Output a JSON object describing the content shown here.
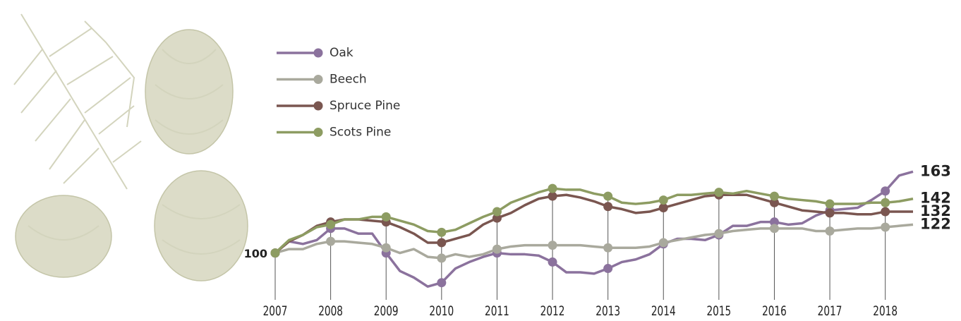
{
  "chart_data": {
    "type": "line",
    "x": [
      2007,
      2007.25,
      2007.5,
      2007.75,
      2008,
      2008.25,
      2008.5,
      2008.75,
      2009,
      2009.25,
      2009.5,
      2009.75,
      2010,
      2010.25,
      2010.5,
      2010.75,
      2011,
      2011.25,
      2011.5,
      2011.75,
      2012,
      2012.25,
      2012.5,
      2012.75,
      2013,
      2013.25,
      2013.5,
      2013.75,
      2014,
      2014.25,
      2014.5,
      2014.75,
      2015,
      2015.25,
      2015.5,
      2015.75,
      2016,
      2016.25,
      2016.5,
      2016.75,
      2017,
      2017.25,
      2017.5,
      2017.75,
      2018,
      2018.25,
      2018.5
    ],
    "xlim": [
      2007,
      2018.5
    ],
    "xticks": [
      2007,
      2008,
      2009,
      2010,
      2011,
      2012,
      2013,
      2014,
      2015,
      2016,
      2017,
      2018
    ],
    "ylim": [
      70,
      170
    ],
    "series": [
      {
        "name": "Oak",
        "color": "#8b729d",
        "values": [
          100,
          109,
          107,
          110,
          119,
          119,
          115,
          115,
          100,
          86,
          81,
          74,
          77,
          88,
          93,
          97,
          100,
          99,
          99,
          98,
          93,
          85,
          85,
          84,
          88,
          93,
          95,
          99,
          107,
          111,
          111,
          110,
          114,
          121,
          121,
          124,
          124,
          122,
          123,
          129,
          133,
          134,
          135,
          141,
          148,
          160,
          163
        ]
      },
      {
        "name": "Beech",
        "color": "#a9a99d",
        "values": [
          100,
          103,
          103,
          107,
          109,
          109,
          108,
          107,
          104,
          100,
          103,
          97,
          96,
          99,
          97,
          99,
          103,
          105,
          106,
          106,
          106,
          106,
          106,
          105,
          104,
          104,
          104,
          105,
          108,
          110,
          112,
          114,
          115,
          117,
          118,
          119,
          119,
          119,
          119,
          117,
          117,
          118,
          119,
          119,
          120,
          121,
          122
        ]
      },
      {
        "name": "Spruce Pine",
        "color": "#7a5650",
        "values": [
          100,
          109,
          114,
          121,
          124,
          126,
          126,
          125,
          124,
          120,
          115,
          108,
          108,
          111,
          114,
          122,
          127,
          131,
          137,
          142,
          144,
          145,
          143,
          140,
          136,
          134,
          131,
          132,
          135,
          138,
          141,
          144,
          145,
          145,
          145,
          142,
          139,
          136,
          133,
          132,
          131,
          131,
          130,
          130,
          132,
          132,
          132
        ]
      },
      {
        "name": "Scots Pine",
        "color": "#8d9c62",
        "values": [
          100,
          110,
          114,
          120,
          122,
          126,
          126,
          128,
          128,
          125,
          122,
          117,
          116,
          118,
          123,
          128,
          132,
          139,
          143,
          147,
          150,
          149,
          149,
          146,
          144,
          139,
          138,
          139,
          141,
          145,
          145,
          146,
          147,
          146,
          148,
          146,
          144,
          142,
          141,
          140,
          138,
          138,
          138,
          139,
          139,
          140,
          142
        ]
      }
    ]
  }
}
